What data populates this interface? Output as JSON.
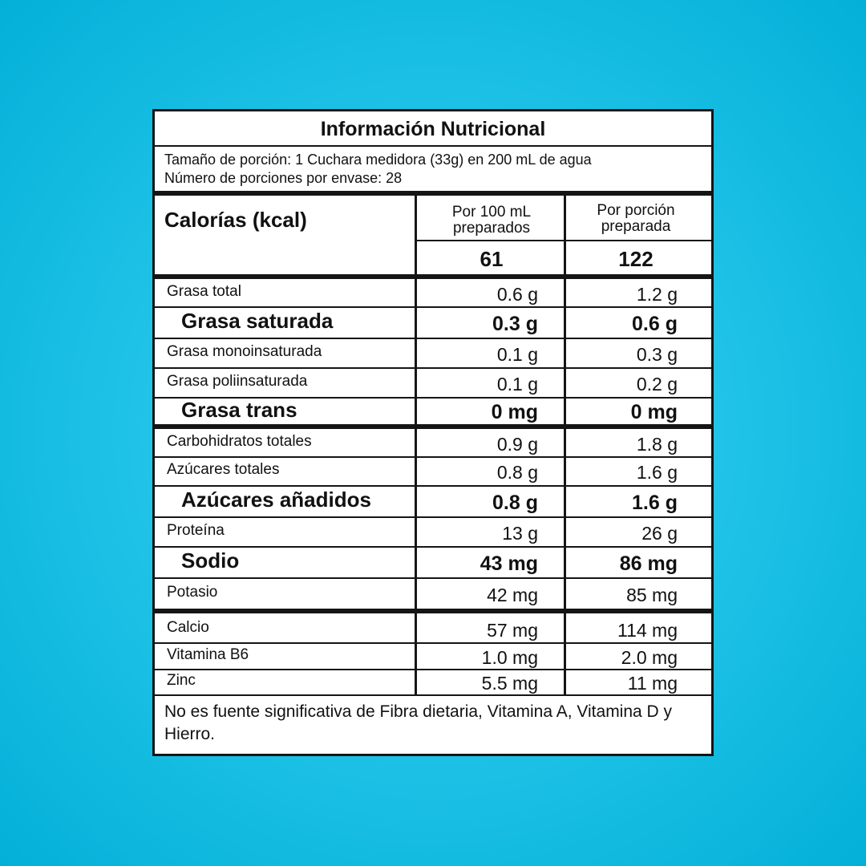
{
  "title": "Información Nutricional",
  "serving_size": "Tamaño de porción: 1 Cuchara medidora (33g) en 200 mL de agua",
  "servings_per_container": "Número de porciones por envase: 28",
  "calories_label": "Calorías (kcal)",
  "columns": [
    "Por 100 mL preparados",
    "Por porción preparada"
  ],
  "calories": [
    "61",
    "122"
  ],
  "rows": [
    {
      "label": "Grasa total",
      "v100": "0.6 g",
      "vp": "1.2 g",
      "bold": false
    },
    {
      "label": "Grasa saturada",
      "v100": "0.3 g",
      "vp": "0.6 g",
      "bold": true
    },
    {
      "label": "Grasa monoinsaturada",
      "v100": "0.1 g",
      "vp": "0.3 g",
      "bold": false
    },
    {
      "label": "Grasa poliinsaturada",
      "v100": "0.1 g",
      "vp": "0.2 g",
      "bold": false
    },
    {
      "label": "Grasa trans",
      "v100": "0 mg",
      "vp": "0 mg",
      "bold": true
    },
    {
      "label": "Carbohidratos totales",
      "v100": "0.9 g",
      "vp": "1.8 g",
      "bold": false
    },
    {
      "label": "Azúcares totales",
      "v100": "0.8 g",
      "vp": "1.6 g",
      "bold": false
    },
    {
      "label": "Azúcares añadidos",
      "v100": "0.8 g",
      "vp": "1.6 g",
      "bold": true
    },
    {
      "label": "Proteína",
      "v100": "13 g",
      "vp": "26 g",
      "bold": false
    },
    {
      "label": "Sodio",
      "v100": "43 mg",
      "vp": "86 mg",
      "bold": true
    },
    {
      "label": "Potasio",
      "v100": "42 mg",
      "vp": "85 mg",
      "bold": false
    },
    {
      "label": "Calcio",
      "v100": "57 mg",
      "vp": "114 mg",
      "bold": false
    },
    {
      "label": "Vitamina B6",
      "v100": "1.0 mg",
      "vp": "2.0 mg",
      "bold": false
    },
    {
      "label": "Zinc",
      "v100": "5.5 mg",
      "vp": "11 mg",
      "bold": false
    }
  ],
  "footnote": "No es fuente significativa de Fibra dietaria, Vitamina A, Vitamina D y Hierro.",
  "colors": {
    "background": "#22c4e8",
    "border": "#151515",
    "panel": "#ffffff"
  }
}
